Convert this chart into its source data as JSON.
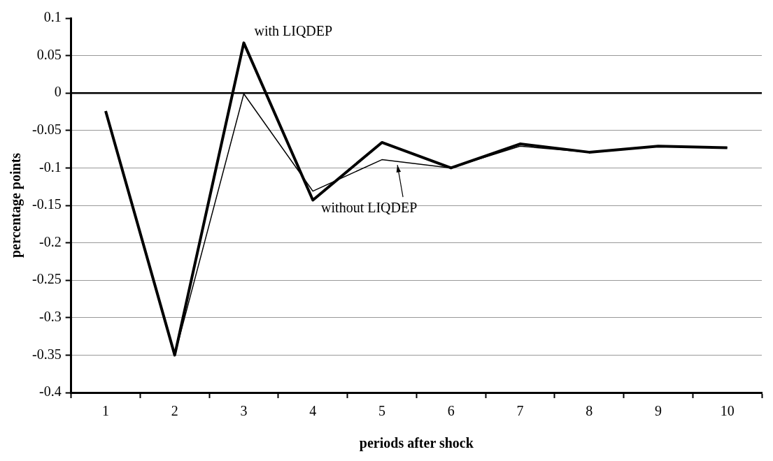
{
  "chart_data": {
    "type": "line",
    "xlabel": "periods after shock",
    "ylabel": "percentage points",
    "categories": [
      "1",
      "2",
      "3",
      "4",
      "5",
      "6",
      "7",
      "8",
      "9",
      "10"
    ],
    "series": [
      {
        "color": "#000000",
        "values": [
          -0.024,
          -0.35,
          0.067,
          -0.143,
          -0.066,
          -0.1,
          -0.068,
          -0.079,
          -0.071,
          -0.073
        ]
      },
      {
        "color": "#000000",
        "values": [
          -0.024,
          -0.35,
          -0.001,
          -0.131,
          -0.089,
          -0.1,
          -0.071,
          -0.079,
          -0.071,
          -0.073
        ]
      }
    ],
    "ylim": [
      -0.4,
      0.1
    ],
    "yticks": [
      -0.4,
      -0.35,
      -0.3,
      -0.25,
      -0.2,
      -0.15,
      -0.1,
      -0.05,
      0,
      0.05,
      0.1
    ],
    "grid": "y",
    "legend": false,
    "marker": "none",
    "line_style": "solid",
    "ref_lines": [
      {
        "axis": "y",
        "value": 0,
        "color": "#000000"
      }
    ],
    "annotations": [
      {
        "text": "with LIQDEP",
        "x": "3",
        "y": 0.067
      },
      "without LIQDEP"
    ]
  }
}
